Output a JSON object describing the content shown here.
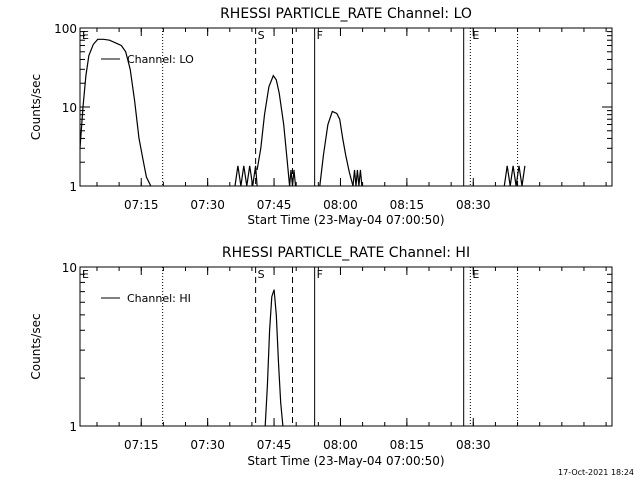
{
  "footer": {
    "timestamp": "17-Oct-2021 18:24"
  },
  "chart_data": [
    {
      "type": "line",
      "title": "RHESSI PARTICLE_RATE Channel: LO",
      "xlabel": "Start Time (23-May-04 07:00:50)",
      "ylabel": "Counts/sec",
      "yscale": "log",
      "ylim": [
        1,
        100
      ],
      "yticks": [
        1,
        10,
        100
      ],
      "ytick_labels": [
        "1",
        "10",
        "100"
      ],
      "xlim": [
        0,
        7210
      ],
      "xticks": [
        830,
        1730,
        2630,
        3530,
        4430,
        5330
      ],
      "xtick_labels": [
        "07:15",
        "07:30",
        "07:45",
        "08:00",
        "08:15",
        "08:30"
      ],
      "legend": {
        "label": "Channel: LO",
        "placement": "top-left"
      },
      "markers": [
        {
          "label": "E",
          "x": 0,
          "style": "none"
        },
        {
          "label": "",
          "x": 1120,
          "style": "dotted"
        },
        {
          "label": "S",
          "x": 2380,
          "style": "dashed"
        },
        {
          "label": "",
          "x": 2880,
          "style": "dashed"
        },
        {
          "label": "F",
          "x": 3180,
          "style": "solid"
        },
        {
          "label": "",
          "x": 5200,
          "style": "solid"
        },
        {
          "label": "E",
          "x": 5290,
          "style": "dotted"
        },
        {
          "label": "",
          "x": 5930,
          "style": "dotted"
        }
      ],
      "series": [
        {
          "x": [
            0,
            40,
            80,
            120,
            180,
            240,
            320,
            400,
            480,
            560,
            620,
            680,
            740,
            800,
            860,
            900,
            960
          ],
          "y": [
            3,
            10,
            25,
            45,
            62,
            72,
            72,
            70,
            65,
            60,
            50,
            30,
            12,
            4,
            2,
            1.3,
            1
          ]
        },
        {
          "x": [
            2100,
            2140,
            2180,
            2220,
            2260,
            2300,
            2340,
            2380,
            2400
          ],
          "y": [
            1,
            1.8,
            1,
            1.8,
            1,
            1.8,
            1,
            1.8,
            1
          ]
        },
        {
          "x": [
            2400,
            2450,
            2500,
            2560,
            2620,
            2660,
            2700,
            2760,
            2800,
            2840
          ],
          "y": [
            1.6,
            3,
            8,
            18,
            25,
            22,
            15,
            6,
            2.5,
            1
          ]
        },
        {
          "x": [
            2840,
            2860,
            2880,
            2900,
            2920
          ],
          "y": [
            1,
            1.6,
            1,
            1.6,
            1
          ]
        },
        {
          "x": [
            3250,
            3300,
            3360,
            3420,
            3480,
            3520,
            3560,
            3600,
            3650,
            3700
          ],
          "y": [
            1,
            2.5,
            6,
            8.8,
            8.3,
            7,
            4,
            2.5,
            1.5,
            1
          ]
        },
        {
          "x": [
            3700,
            3720,
            3740,
            3760,
            3780,
            3800,
            3820
          ],
          "y": [
            1,
            1.6,
            1,
            1.6,
            1,
            1.6,
            1
          ]
        },
        {
          "x": [
            5750,
            5790,
            5830,
            5870,
            5910,
            5950,
            5990,
            6030
          ],
          "y": [
            1,
            1.8,
            1,
            1.8,
            1,
            1.8,
            1,
            1.8
          ]
        }
      ]
    },
    {
      "type": "line",
      "title": "RHESSI PARTICLE_RATE Channel: HI",
      "xlabel": "Start Time (23-May-04 07:00:50)",
      "ylabel": "Counts/sec",
      "yscale": "log",
      "ylim": [
        1,
        10
      ],
      "yticks": [
        1,
        10
      ],
      "ytick_labels": [
        "1",
        "10"
      ],
      "xlim": [
        0,
        7210
      ],
      "xticks": [
        830,
        1730,
        2630,
        3530,
        4430,
        5330
      ],
      "xtick_labels": [
        "07:15",
        "07:30",
        "07:45",
        "08:00",
        "08:15",
        "08:30"
      ],
      "legend": {
        "label": "Channel: HI",
        "placement": "top-left"
      },
      "markers": [
        {
          "label": "E",
          "x": 0,
          "style": "none"
        },
        {
          "label": "",
          "x": 1120,
          "style": "dotted"
        },
        {
          "label": "S",
          "x": 2380,
          "style": "dashed"
        },
        {
          "label": "",
          "x": 2880,
          "style": "dashed"
        },
        {
          "label": "F",
          "x": 3180,
          "style": "solid"
        },
        {
          "label": "",
          "x": 5200,
          "style": "solid"
        },
        {
          "label": "E",
          "x": 5290,
          "style": "dotted"
        },
        {
          "label": "",
          "x": 5930,
          "style": "dotted"
        }
      ],
      "series": [
        {
          "x": [
            2510,
            2540,
            2570,
            2600,
            2630,
            2660,
            2690,
            2720,
            2750
          ],
          "y": [
            1,
            1.8,
            4,
            6.5,
            7.2,
            5,
            2.5,
            1.4,
            1
          ]
        }
      ]
    }
  ]
}
